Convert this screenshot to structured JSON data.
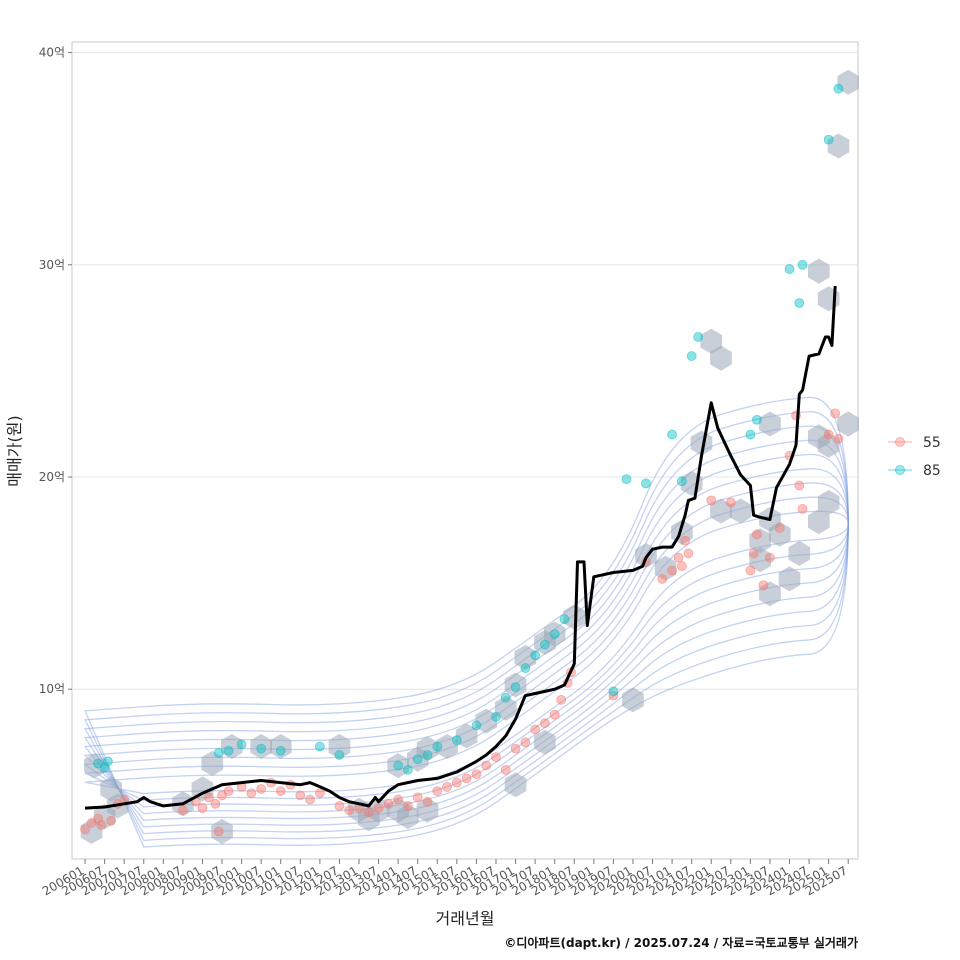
{
  "chart_data": {
    "type": "scatter",
    "title": "",
    "xlabel": "거래년월",
    "ylabel": "매매가(원)",
    "caption": "©디아파트(dapt.kr) / 2025.07.24 / 자료=국토교통부 실거래가",
    "x_ticks": [
      "200601",
      "200607",
      "200701",
      "200707",
      "200801",
      "200807",
      "200901",
      "200907",
      "201001",
      "201007",
      "201101",
      "201107",
      "201201",
      "201207",
      "201301",
      "201307",
      "201401",
      "201407",
      "201501",
      "201507",
      "201601",
      "201607",
      "201701",
      "201707",
      "201801",
      "201807",
      "201901",
      "201907",
      "202001",
      "202007",
      "202101",
      "202107",
      "202201",
      "202207",
      "202301",
      "202307",
      "202401",
      "202407",
      "202501",
      "202507"
    ],
    "y_ticks": [
      10,
      20,
      30,
      40
    ],
    "y_tick_labels": [
      "10억",
      "20억",
      "30억",
      "40억"
    ],
    "y_unit": "억",
    "xlim": [
      "200509",
      "202510"
    ],
    "ylim": [
      2.0,
      40.5
    ],
    "grid": true,
    "legend_position": "right",
    "colors": {
      "55": "#F8766D",
      "85": "#00BFC4",
      "line": "#000000",
      "contour": "#7B9BE0",
      "hex": "#9AA7B8"
    },
    "series": [
      {
        "name": "55",
        "points": [
          [
            "200601",
            3.4
          ],
          [
            "200603",
            3.7
          ],
          [
            "200605",
            3.9
          ],
          [
            "200606",
            3.6
          ],
          [
            "200609",
            3.8
          ],
          [
            "200611",
            4.6
          ],
          [
            "200701",
            4.8
          ],
          [
            "200807",
            4.3
          ],
          [
            "200811",
            4.7
          ],
          [
            "200901",
            4.4
          ],
          [
            "200903",
            4.9
          ],
          [
            "200905",
            4.6
          ],
          [
            "200906",
            3.3
          ],
          [
            "200907",
            5.0
          ],
          [
            "200909",
            5.2
          ],
          [
            "201001",
            5.4
          ],
          [
            "201004",
            5.1
          ],
          [
            "201007",
            5.3
          ],
          [
            "201010",
            5.6
          ],
          [
            "201101",
            5.2
          ],
          [
            "201104",
            5.5
          ],
          [
            "201107",
            5.0
          ],
          [
            "201110",
            4.8
          ],
          [
            "201201",
            5.1
          ],
          [
            "201207",
            4.5
          ],
          [
            "201210",
            4.3
          ],
          [
            "201301",
            4.4
          ],
          [
            "201304",
            4.2
          ],
          [
            "201307",
            4.4
          ],
          [
            "201310",
            4.6
          ],
          [
            "201401",
            4.8
          ],
          [
            "201404",
            4.5
          ],
          [
            "201407",
            4.9
          ],
          [
            "201410",
            4.7
          ],
          [
            "201501",
            5.2
          ],
          [
            "201504",
            5.4
          ],
          [
            "201507",
            5.6
          ],
          [
            "201510",
            5.8
          ],
          [
            "201601",
            6.0
          ],
          [
            "201604",
            6.4
          ],
          [
            "201607",
            6.8
          ],
          [
            "201610",
            6.2
          ],
          [
            "201701",
            7.2
          ],
          [
            "201704",
            7.5
          ],
          [
            "201707",
            8.1
          ],
          [
            "201710",
            8.4
          ],
          [
            "201801",
            8.8
          ],
          [
            "201803",
            9.5
          ],
          [
            "201805",
            10.3
          ],
          [
            "201806",
            10.8
          ],
          [
            "201907",
            9.7
          ],
          [
            "202005",
            16.0
          ],
          [
            "202010",
            15.2
          ],
          [
            "202101",
            15.6
          ],
          [
            "202103",
            16.2
          ],
          [
            "202104",
            15.8
          ],
          [
            "202105",
            17.0
          ],
          [
            "202106",
            16.4
          ],
          [
            "202201",
            18.9
          ],
          [
            "202207",
            18.8
          ],
          [
            "202301",
            15.6
          ],
          [
            "202302",
            16.4
          ],
          [
            "202303",
            17.3
          ],
          [
            "202305",
            14.9
          ],
          [
            "202307",
            16.2
          ],
          [
            "202310",
            17.6
          ],
          [
            "202401",
            21.0
          ],
          [
            "202403",
            22.9
          ],
          [
            "202404",
            19.6
          ],
          [
            "202405",
            18.5
          ],
          [
            "202501",
            22.0
          ],
          [
            "202503",
            23.0
          ],
          [
            "202504",
            21.8
          ]
        ]
      },
      {
        "name": "85",
        "points": [
          [
            "200605",
            6.5
          ],
          [
            "200607",
            6.3
          ],
          [
            "200608",
            6.6
          ],
          [
            "200906",
            7.0
          ],
          [
            "200909",
            7.1
          ],
          [
            "201001",
            7.4
          ],
          [
            "201007",
            7.2
          ],
          [
            "201101",
            7.1
          ],
          [
            "201201",
            7.3
          ],
          [
            "201207",
            6.9
          ],
          [
            "201401",
            6.4
          ],
          [
            "201404",
            6.2
          ],
          [
            "201407",
            6.7
          ],
          [
            "201410",
            6.9
          ],
          [
            "201501",
            7.3
          ],
          [
            "201507",
            7.6
          ],
          [
            "201601",
            8.3
          ],
          [
            "201607",
            8.7
          ],
          [
            "201610",
            9.6
          ],
          [
            "201701",
            10.1
          ],
          [
            "201704",
            11.0
          ],
          [
            "201707",
            11.6
          ],
          [
            "201710",
            12.1
          ],
          [
            "201801",
            12.6
          ],
          [
            "201804",
            13.3
          ],
          [
            "201907",
            9.9
          ],
          [
            "201911",
            19.9
          ],
          [
            "202005",
            19.7
          ],
          [
            "202101",
            22.0
          ],
          [
            "202104",
            19.8
          ],
          [
            "202107",
            25.7
          ],
          [
            "202109",
            26.6
          ],
          [
            "202301",
            22.0
          ],
          [
            "202303",
            22.7
          ],
          [
            "202401",
            29.8
          ],
          [
            "202404",
            28.2
          ],
          [
            "202405",
            30.0
          ],
          [
            "202501",
            35.9
          ],
          [
            "202504",
            38.3
          ]
        ]
      }
    ],
    "trend_line": [
      [
        "200601",
        4.4
      ],
      [
        "200607",
        4.45
      ],
      [
        "200701",
        4.6
      ],
      [
        "200705",
        4.7
      ],
      [
        "200707",
        4.9
      ],
      [
        "200709",
        4.7
      ],
      [
        "200801",
        4.5
      ],
      [
        "200807",
        4.6
      ],
      [
        "200901",
        5.1
      ],
      [
        "200904",
        5.3
      ],
      [
        "200907",
        5.5
      ],
      [
        "201001",
        5.6
      ],
      [
        "201007",
        5.7
      ],
      [
        "201101",
        5.6
      ],
      [
        "201107",
        5.5
      ],
      [
        "201110",
        5.6
      ],
      [
        "201201",
        5.4
      ],
      [
        "201204",
        5.2
      ],
      [
        "201207",
        4.9
      ],
      [
        "201210",
        4.7
      ],
      [
        "201301",
        4.6
      ],
      [
        "201304",
        4.5
      ],
      [
        "201306",
        4.9
      ],
      [
        "201307",
        4.7
      ],
      [
        "201310",
        5.2
      ],
      [
        "201401",
        5.5
      ],
      [
        "201407",
        5.7
      ],
      [
        "201501",
        5.8
      ],
      [
        "201507",
        6.1
      ],
      [
        "201601",
        6.6
      ],
      [
        "201604",
        6.9
      ],
      [
        "201607",
        7.3
      ],
      [
        "201610",
        7.8
      ],
      [
        "201701",
        8.6
      ],
      [
        "201704",
        9.7
      ],
      [
        "201707",
        9.8
      ],
      [
        "201710",
        9.9
      ],
      [
        "201801",
        10.0
      ],
      [
        "201804",
        10.2
      ],
      [
        "201807",
        11.2
      ],
      [
        "201808",
        16.0
      ],
      [
        "201810",
        16.0
      ],
      [
        "201811",
        13.0
      ],
      [
        "201901",
        15.3
      ],
      [
        "201907",
        15.5
      ],
      [
        "202001",
        15.6
      ],
      [
        "202004",
        15.8
      ],
      [
        "202005",
        16.2
      ],
      [
        "202007",
        16.6
      ],
      [
        "202010",
        16.7
      ],
      [
        "202101",
        16.7
      ],
      [
        "202103",
        17.2
      ],
      [
        "202105",
        18.2
      ],
      [
        "202106",
        18.9
      ],
      [
        "202108",
        19.0
      ],
      [
        "202110",
        21.0
      ],
      [
        "202201",
        23.5
      ],
      [
        "202203",
        22.3
      ],
      [
        "202207",
        21.0
      ],
      [
        "202210",
        20.1
      ],
      [
        "202301",
        19.6
      ],
      [
        "202302",
        18.2
      ],
      [
        "202304",
        18.1
      ],
      [
        "202307",
        18.0
      ],
      [
        "202309",
        19.5
      ],
      [
        "202401",
        20.6
      ],
      [
        "202403",
        21.5
      ],
      [
        "202404",
        23.9
      ],
      [
        "202405",
        24.1
      ],
      [
        "202407",
        25.7
      ],
      [
        "202410",
        25.8
      ],
      [
        "202412",
        26.6
      ],
      [
        "202501",
        26.6
      ],
      [
        "202502",
        26.2
      ],
      [
        "202503",
        29.0
      ]
    ],
    "hex_cells": [
      [
        "200603",
        3.3
      ],
      [
        "200607",
        4.0
      ],
      [
        "200611",
        4.5
      ],
      [
        "200609",
        5.3
      ],
      [
        "200604",
        6.4
      ],
      [
        "200807",
        4.6
      ],
      [
        "200901",
        5.3
      ],
      [
        "200907",
        3.3
      ],
      [
        "200904",
        6.5
      ],
      [
        "200910",
        7.3
      ],
      [
        "201007",
        7.3
      ],
      [
        "201101",
        7.3
      ],
      [
        "201207",
        7.3
      ],
      [
        "201301",
        4.3
      ],
      [
        "201304",
        3.9
      ],
      [
        "201307",
        4.3
      ],
      [
        "201401",
        4.3
      ],
      [
        "201404",
        4.0
      ],
      [
        "201410",
        4.3
      ],
      [
        "201401",
        6.4
      ],
      [
        "201407",
        6.7
      ],
      [
        "201410",
        7.2
      ],
      [
        "201504",
        7.3
      ],
      [
        "201510",
        7.8
      ],
      [
        "201604",
        8.5
      ],
      [
        "201610",
        9.1
      ],
      [
        "201701",
        10.2
      ],
      [
        "201704",
        11.5
      ],
      [
        "201710",
        12.2
      ],
      [
        "201801",
        12.6
      ],
      [
        "201807",
        13.4
      ],
      [
        "201701",
        5.5
      ],
      [
        "201710",
        7.5
      ],
      [
        "202001",
        9.5
      ],
      [
        "202005",
        16.3
      ],
      [
        "202011",
        15.7
      ],
      [
        "202104",
        17.4
      ],
      [
        "202107",
        19.7
      ],
      [
        "202110",
        21.6
      ],
      [
        "202201",
        26.4
      ],
      [
        "202204",
        25.6
      ],
      [
        "202204",
        18.4
      ],
      [
        "202210",
        18.4
      ],
      [
        "202304",
        17.0
      ],
      [
        "202307",
        18.0
      ],
      [
        "202310",
        17.3
      ],
      [
        "202304",
        16.1
      ],
      [
        "202401",
        15.2
      ],
      [
        "202307",
        14.5
      ],
      [
        "202404",
        16.4
      ],
      [
        "202410",
        17.9
      ],
      [
        "202501",
        18.8
      ],
      [
        "202501",
        21.5
      ],
      [
        "202507",
        22.5
      ],
      [
        "202410",
        21.9
      ],
      [
        "202307",
        22.5
      ],
      [
        "202410",
        29.7
      ],
      [
        "202501",
        28.4
      ],
      [
        "202504",
        35.6
      ],
      [
        "202507",
        38.6
      ]
    ]
  },
  "legend": {
    "items": [
      {
        "label": "55"
      },
      {
        "label": "85"
      }
    ]
  }
}
